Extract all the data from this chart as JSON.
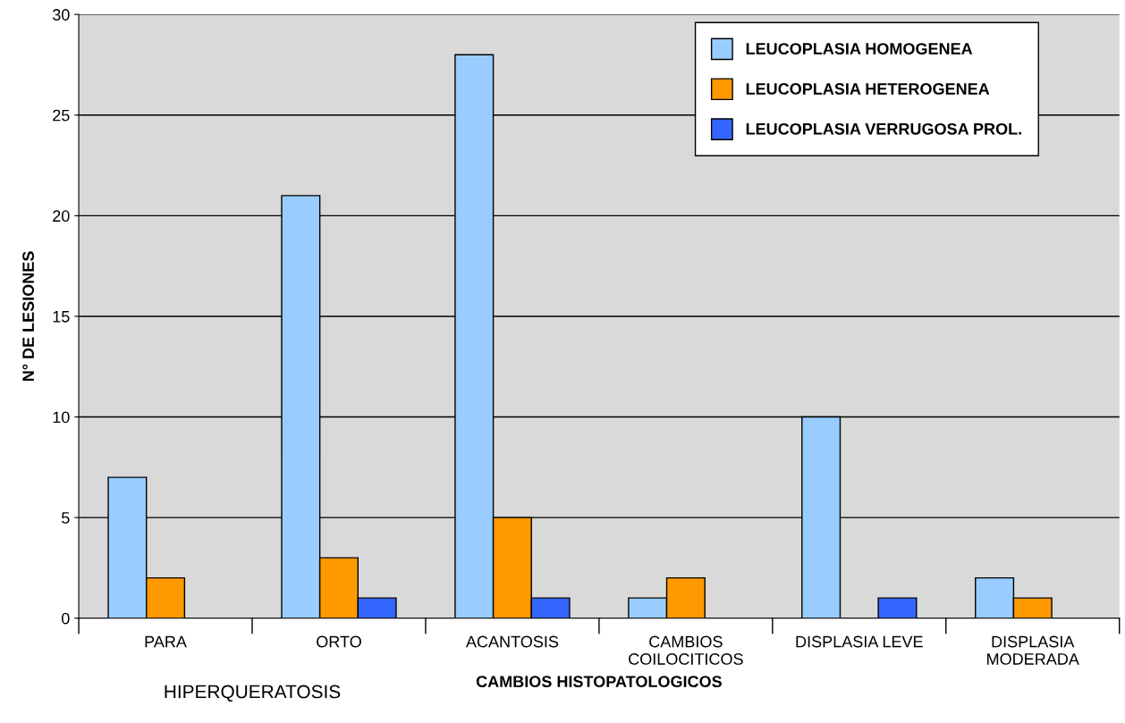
{
  "chart_data": {
    "type": "bar",
    "xlabel": "CAMBIOS HISTOPATOLOGICOS",
    "ylabel": "N° DE LESIONES",
    "categories": [
      "PARA",
      "ORTO",
      "ACANTOSIS",
      "CAMBIOS\nCOILOCITICOS",
      "DISPLASIA LEVE",
      "DISPLASIA\nMODERADA"
    ],
    "series": [
      {
        "name": "LEUCOPLASIA HOMOGENEA",
        "color": "#99ccff",
        "values": [
          7,
          21,
          28,
          1,
          10,
          2
        ]
      },
      {
        "name": "LEUCOPLASIA HETEROGENEA",
        "color": "#ff9900",
        "values": [
          2,
          3,
          5,
          2,
          null,
          1
        ]
      },
      {
        "name": "LEUCOPLASIA VERRUGOSA PROL.",
        "color": "#3366ff",
        "values": [
          null,
          1,
          1,
          null,
          1,
          null
        ]
      }
    ],
    "annotations": [
      "HIPERQUERATOSIS"
    ],
    "ylim": [
      0,
      30
    ],
    "yticks": [
      0,
      5,
      10,
      15,
      20,
      25,
      30
    ],
    "grid": "y",
    "legend": "top right"
  }
}
